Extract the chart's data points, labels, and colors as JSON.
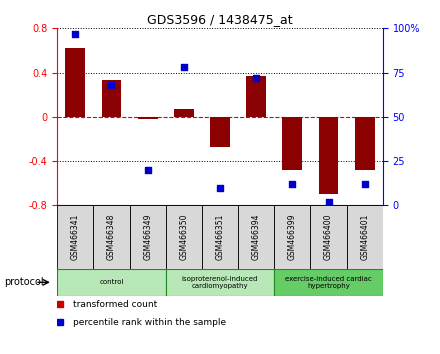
{
  "title": "GDS3596 / 1438475_at",
  "samples": [
    "GSM466341",
    "GSM466348",
    "GSM466349",
    "GSM466350",
    "GSM466351",
    "GSM466394",
    "GSM466399",
    "GSM466400",
    "GSM466401"
  ],
  "bar_values": [
    0.62,
    0.33,
    -0.02,
    0.07,
    -0.27,
    0.37,
    -0.48,
    -0.7,
    -0.48
  ],
  "dot_values": [
    97,
    68,
    20,
    78,
    10,
    72,
    12,
    2,
    12
  ],
  "bar_color": "#8B0000",
  "dot_color": "#0000CC",
  "ylim_left": [
    -0.8,
    0.8
  ],
  "ylim_right": [
    0,
    100
  ],
  "yticks_left": [
    -0.8,
    -0.4,
    0.0,
    0.4,
    0.8
  ],
  "ytick_labels_left": [
    "-0.8",
    "-0.4",
    "0",
    "0.4",
    "0.8"
  ],
  "yticks_right": [
    0,
    25,
    50,
    75,
    100
  ],
  "ytick_labels_right": [
    "0",
    "25",
    "50",
    "75",
    "100%"
  ],
  "groups": [
    {
      "label": "control",
      "start": 0,
      "end": 3,
      "color": "#b8e8b8"
    },
    {
      "label": "isoproterenol-induced\ncardiomyopathy",
      "start": 3,
      "end": 6,
      "color": "#b8e8b8"
    },
    {
      "label": "exercise-induced cardiac\nhypertrophy",
      "start": 6,
      "end": 9,
      "color": "#66cc66"
    }
  ],
  "protocol_label": "protocol",
  "legend_items": [
    {
      "color": "#CC0000",
      "label": "transformed count"
    },
    {
      "color": "#0000CC",
      "label": "percentile rank within the sample"
    }
  ],
  "hline_color": "#DD0000",
  "dot_line_color": "#000000",
  "figsize": [
    4.4,
    3.54
  ],
  "dpi": 100
}
